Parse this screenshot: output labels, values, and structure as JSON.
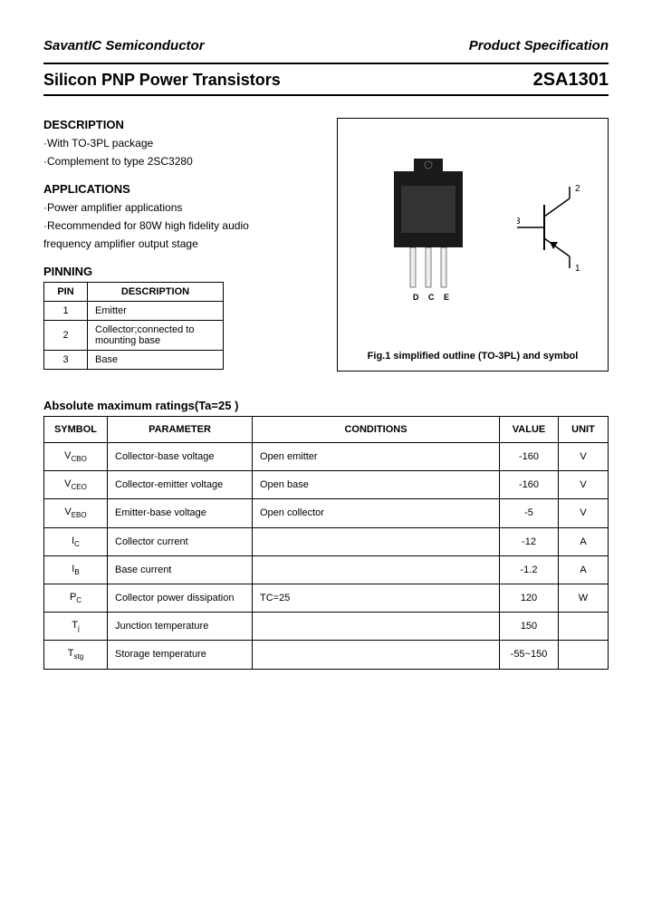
{
  "header": {
    "company": "SavantIC Semiconductor",
    "doc_type": "Product Specification"
  },
  "title": {
    "left": "Silicon PNP Power Transistors",
    "right": "2SA1301"
  },
  "description": {
    "heading": "DESCRIPTION",
    "items": [
      "·With TO-3PL package",
      "·Complement to type 2SC3280"
    ]
  },
  "applications": {
    "heading": "APPLICATIONS",
    "items": [
      "·Power amplifier applications",
      "·Recommended for 80W high fidelity audio",
      "  frequency amplifier output stage"
    ]
  },
  "pinning": {
    "heading": "PINNING",
    "columns": [
      "PIN",
      "DESCRIPTION"
    ],
    "rows": [
      {
        "pin": "1",
        "desc": "Emitter"
      },
      {
        "pin": "2",
        "desc": "Collector;connected to mounting base"
      },
      {
        "pin": "3",
        "desc": "Base"
      }
    ]
  },
  "figure": {
    "caption": "Fig.1 simplified outline (TO-3PL) and symbol",
    "pin_labels": [
      "D",
      "C",
      "E"
    ],
    "symbol_pins": {
      "collector": "2",
      "base": "3",
      "emitter": "1"
    },
    "package_color": "#1a1a1a",
    "lead_color": "#eeeeee",
    "lead_stroke": "#000000"
  },
  "ratings": {
    "heading": "Absolute maximum ratings(Ta=25 )",
    "columns": [
      "SYMBOL",
      "PARAMETER",
      "CONDITIONS",
      "VALUE",
      "UNIT"
    ],
    "rows": [
      {
        "sym": "V",
        "sub": "CBO",
        "param": "Collector-base voltage",
        "cond": "Open emitter",
        "value": "-160",
        "unit": "V"
      },
      {
        "sym": "V",
        "sub": "CEO",
        "param": "Collector-emitter voltage",
        "cond": "Open base",
        "value": "-160",
        "unit": "V"
      },
      {
        "sym": "V",
        "sub": "EBO",
        "param": "Emitter-base voltage",
        "cond": "Open collector",
        "value": "-5",
        "unit": "V"
      },
      {
        "sym": "I",
        "sub": "C",
        "param": "Collector current",
        "cond": "",
        "value": "-12",
        "unit": "A"
      },
      {
        "sym": "I",
        "sub": "B",
        "param": "Base current",
        "cond": "",
        "value": "-1.2",
        "unit": "A"
      },
      {
        "sym": "P",
        "sub": "C",
        "param": "Collector power dissipation",
        "cond": "TC=25 ",
        "value": "120",
        "unit": "W"
      },
      {
        "sym": "T",
        "sub": "j",
        "param": "Junction temperature",
        "cond": "",
        "value": "150",
        "unit": ""
      },
      {
        "sym": "T",
        "sub": "stg",
        "param": "Storage temperature",
        "cond": "",
        "value": "-55~150",
        "unit": ""
      }
    ]
  },
  "colors": {
    "text": "#000000",
    "border": "#000000",
    "background": "#ffffff"
  }
}
